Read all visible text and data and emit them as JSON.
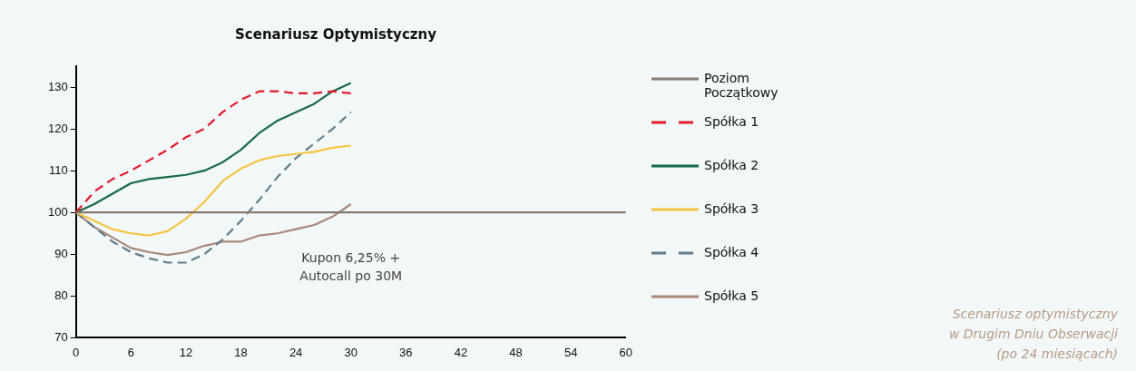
{
  "chart_data": {
    "type": "line",
    "title": "Scenariusz Optymistyczny",
    "x": [
      0,
      2,
      4,
      6,
      8,
      10,
      12,
      14,
      16,
      18,
      20,
      22,
      24,
      26,
      28,
      30
    ],
    "xlim": [
      0,
      60
    ],
    "xticks": [
      0,
      6,
      12,
      18,
      24,
      30,
      36,
      42,
      48,
      54,
      60
    ],
    "ylim": [
      70,
      135
    ],
    "yticks": [
      70,
      80,
      90,
      100,
      110,
      120,
      130
    ],
    "grid": false,
    "legend": "right",
    "marker": "none",
    "series": [
      {
        "name": "Poziom Początkowy",
        "color": "#8a7b72",
        "x": [
          0,
          60
        ],
        "values": [
          100,
          100
        ],
        "line_style": "solid"
      },
      {
        "name": "Spółka 1",
        "color": "#e31b2b",
        "line_style": "dashed",
        "values": [
          100,
          105,
          108,
          110,
          112.5,
          115,
          118,
          120,
          124,
          127,
          129,
          129,
          128.5,
          128.5,
          129,
          128.5
        ]
      },
      {
        "name": "Spółka 2",
        "color": "#17694a",
        "line_style": "solid",
        "values": [
          100,
          102,
          104.5,
          107,
          108,
          108.5,
          109,
          110,
          112,
          115,
          119,
          122,
          124,
          126,
          129,
          131
        ]
      },
      {
        "name": "Spółka 3",
        "color": "#f5c443",
        "line_style": "solid",
        "values": [
          100,
          98,
          96,
          95,
          94.5,
          95.5,
          98.5,
          102.5,
          107.5,
          110.5,
          112.5,
          113.5,
          114,
          114.5,
          115.5,
          116
        ]
      },
      {
        "name": "Spółka 4",
        "color": "#5f7d8c",
        "line_style": "dashed",
        "values": [
          100,
          96.5,
          93,
          90.5,
          89,
          88,
          88,
          90,
          93.5,
          98,
          103,
          108.5,
          113,
          116.5,
          120,
          124
        ]
      },
      {
        "name": "Spółka 5",
        "color": "#a8887a",
        "line_style": "solid",
        "values": [
          100,
          96.5,
          94,
          91.5,
          90.5,
          89.8,
          90.5,
          92,
          93,
          93,
          94.5,
          95,
          96,
          97,
          99,
          102
        ]
      }
    ],
    "annotations": [
      "Kupon 6,25% +\nAutocall po 30M",
      "Scenariusz optymistyczny\nw Drugim Dniu Obserwacji\n(po 24 miesiącach)"
    ]
  }
}
